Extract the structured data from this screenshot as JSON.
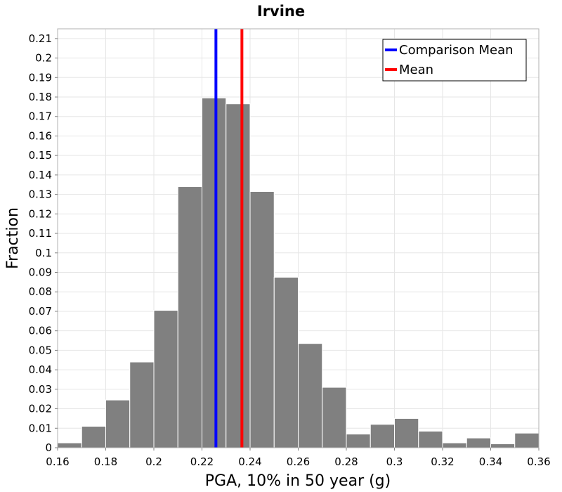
{
  "chart_data": {
    "type": "bar",
    "title": "Irvine",
    "xlabel": "PGA, 10% in 50 year (g)",
    "ylabel": "Fraction",
    "xlim": [
      0.16,
      0.36
    ],
    "ylim": [
      0,
      0.215
    ],
    "grid": true,
    "bar_color": "#808080",
    "bin_width": 0.01,
    "bins": [
      {
        "x": 0.165,
        "value": 0.0025
      },
      {
        "x": 0.175,
        "value": 0.011
      },
      {
        "x": 0.185,
        "value": 0.0245
      },
      {
        "x": 0.195,
        "value": 0.044
      },
      {
        "x": 0.205,
        "value": 0.0705
      },
      {
        "x": 0.215,
        "value": 0.134
      },
      {
        "x": 0.225,
        "value": 0.1795
      },
      {
        "x": 0.235,
        "value": 0.1765
      },
      {
        "x": 0.245,
        "value": 0.1315
      },
      {
        "x": 0.255,
        "value": 0.0875
      },
      {
        "x": 0.265,
        "value": 0.0535
      },
      {
        "x": 0.275,
        "value": 0.031
      },
      {
        "x": 0.285,
        "value": 0.007
      },
      {
        "x": 0.295,
        "value": 0.012
      },
      {
        "x": 0.305,
        "value": 0.015
      },
      {
        "x": 0.315,
        "value": 0.0085
      },
      {
        "x": 0.325,
        "value": 0.0025
      },
      {
        "x": 0.335,
        "value": 0.005
      },
      {
        "x": 0.345,
        "value": 0.002
      },
      {
        "x": 0.355,
        "value": 0.0075
      }
    ],
    "xticks": [
      "0.16",
      "0.18",
      "0.2",
      "0.22",
      "0.24",
      "0.26",
      "0.28",
      "0.3",
      "0.32",
      "0.34",
      "0.36"
    ],
    "yticks": [
      "0",
      "0.01",
      "0.02",
      "0.03",
      "0.04",
      "0.05",
      "0.06",
      "0.07",
      "0.08",
      "0.09",
      "0.1",
      "0.11",
      "0.12",
      "0.13",
      "0.14",
      "0.15",
      "0.16",
      "0.17",
      "0.18",
      "0.19",
      "0.2",
      "0.21"
    ],
    "lines": [
      {
        "name": "Comparison Mean",
        "x": 0.2258,
        "color": "#0000ff"
      },
      {
        "name": "Mean",
        "x": 0.2366,
        "color": "#ff0000"
      }
    ],
    "legend": {
      "placement": "top-right",
      "entries": [
        {
          "label": "Comparison Mean",
          "color": "#0000ff"
        },
        {
          "label": "Mean",
          "color": "#ff0000"
        }
      ]
    }
  }
}
